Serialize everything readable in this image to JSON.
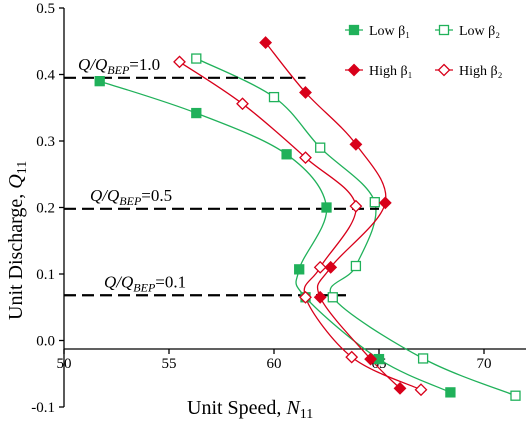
{
  "chart_data": {
    "type": "scatter",
    "title": "",
    "xlabel": {
      "main": "Unit Speed, ",
      "var": "N",
      "sub": "11"
    },
    "ylabel": {
      "main": "Unit Discharge, ",
      "var": "Q",
      "sub": "11"
    },
    "xlim": [
      50,
      72
    ],
    "ylim": [
      -0.1,
      0.5
    ],
    "x_ticks": [
      "50",
      "55",
      "60",
      "65",
      "70"
    ],
    "y_ticks": [
      "-0.1",
      "0.0",
      "0.1",
      "0.2",
      "0.3",
      "0.4",
      "0.5"
    ],
    "grid": false,
    "legend_position": "top-right",
    "reference_lines": [
      {
        "y": 0.395,
        "x_start": 50,
        "x_end": 61.5,
        "label_prefix": "Q/Q",
        "label_sub": "BEP",
        "label_value": "=1.0"
      },
      {
        "y": 0.198,
        "x_start": 50,
        "x_end": 65.0,
        "label_prefix": "Q/Q",
        "label_sub": "BEP",
        "label_value": "=0.5"
      },
      {
        "y": 0.068,
        "x_start": 50,
        "x_end": 63.7,
        "label_prefix": "Q/Q",
        "label_sub": "BEP",
        "label_value": "=0.1"
      }
    ],
    "series": [
      {
        "name": "Low β₁",
        "color": "#20b15a",
        "marker": "square",
        "filled": true,
        "x": [
          51.7,
          56.3,
          60.6,
          62.5,
          61.2,
          61.5,
          65.0,
          68.4
        ],
        "y": [
          0.39,
          0.342,
          0.28,
          0.2,
          0.107,
          0.065,
          -0.028,
          -0.078
        ]
      },
      {
        "name": "Low β₂",
        "color": "#20b15a",
        "marker": "square",
        "filled": false,
        "x": [
          56.3,
          60.0,
          62.2,
          64.8,
          63.9,
          62.8,
          67.1,
          71.5
        ],
        "y": [
          0.424,
          0.366,
          0.29,
          0.208,
          0.112,
          0.065,
          -0.027,
          -0.083
        ]
      },
      {
        "name": "High β₁",
        "color": "#d8001a",
        "marker": "diamond",
        "filled": true,
        "x": [
          59.6,
          61.5,
          63.9,
          65.3,
          62.7,
          62.2,
          64.6,
          66.0
        ],
        "y": [
          0.448,
          0.373,
          0.295,
          0.207,
          0.11,
          0.065,
          -0.028,
          -0.072
        ]
      },
      {
        "name": "High β₂",
        "color": "#d8001a",
        "marker": "diamond",
        "filled": false,
        "x": [
          55.5,
          58.5,
          61.5,
          63.9,
          62.2,
          61.5,
          63.7,
          67.0
        ],
        "y": [
          0.419,
          0.356,
          0.275,
          0.202,
          0.11,
          0.065,
          -0.025,
          -0.074
        ]
      }
    ]
  }
}
